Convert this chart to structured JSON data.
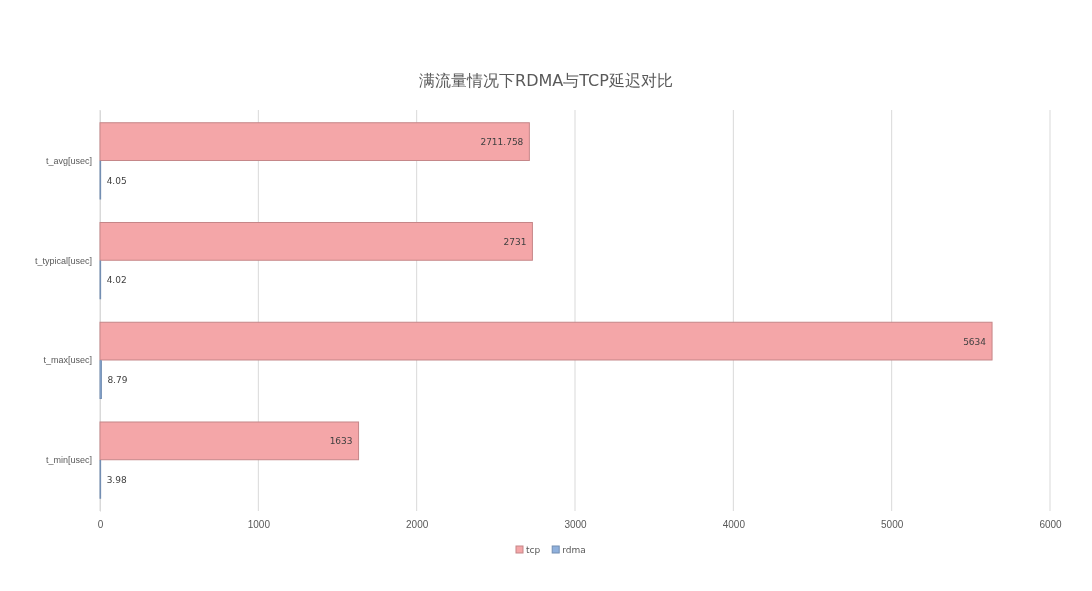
{
  "chart_data": {
    "type": "bar",
    "orientation": "horizontal",
    "title": "满流量情况下RDMA与TCP延迟对比",
    "categories": [
      "t_avg[usec]",
      "t_typical[usec]",
      "t_max[usec]",
      "t_min[usec]"
    ],
    "series": [
      {
        "name": "tcp",
        "color": "#f4a6a8",
        "values": [
          2711.758,
          2731,
          5634,
          1633
        ]
      },
      {
        "name": "rdma",
        "color": "#8fb0dc",
        "values": [
          4.05,
          4.02,
          8.79,
          3.98
        ]
      }
    ],
    "xlim": [
      0,
      6000
    ],
    "xticks": [
      0,
      1000,
      2000,
      3000,
      4000,
      5000,
      6000
    ],
    "grid": "x",
    "legend": "bottom",
    "data_labels": true
  }
}
